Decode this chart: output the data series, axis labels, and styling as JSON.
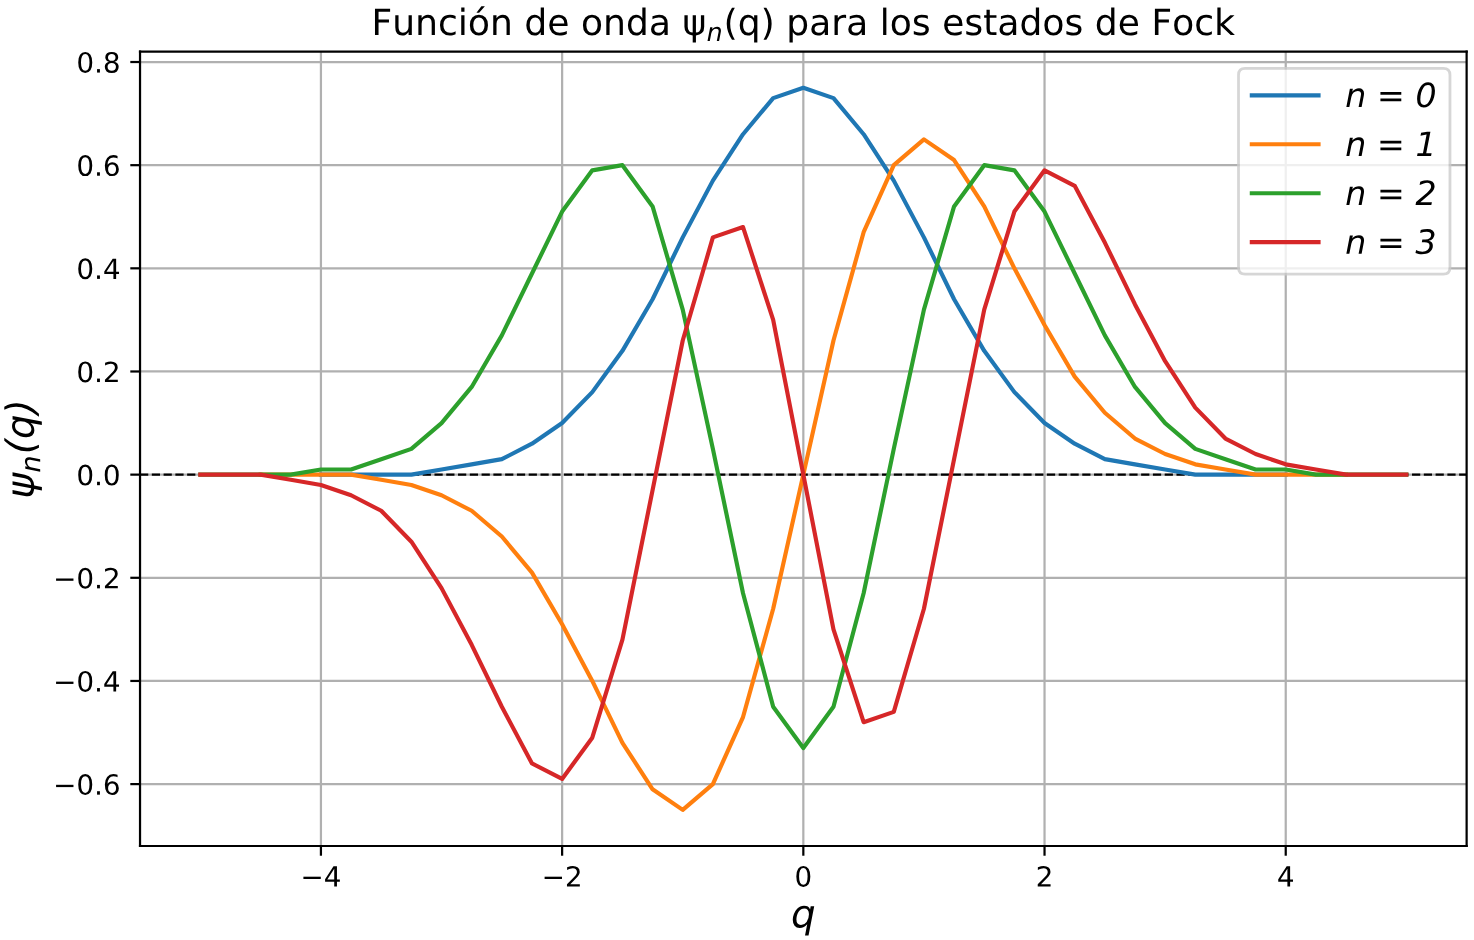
{
  "chart_data": {
    "type": "line",
    "title": "Función de onda ψ$_{n}$(q) para los estados de Fock",
    "xlabel": "q",
    "ylabel": "ψ$_{n}$(q)",
    "x": [
      -5,
      -4.75,
      -4.5,
      -4.25,
      -4,
      -3.75,
      -3.5,
      -3.25,
      -3,
      -2.75,
      -2.5,
      -2.25,
      -2,
      -1.75,
      -1.5,
      -1.25,
      -1,
      -0.75,
      -0.5,
      -0.25,
      0,
      0.25,
      0.5,
      0.75,
      1,
      1.25,
      1.5,
      1.75,
      2,
      2.25,
      2.5,
      2.75,
      3,
      3.25,
      3.5,
      3.75,
      4,
      4.25,
      4.5,
      4.75,
      5
    ],
    "series": [
      {
        "name": "n = 0",
        "color": "#1f77b4",
        "values": [
          null,
          null,
          null,
          null,
          0,
          0,
          0,
          0,
          0.01,
          0.02,
          0.03,
          0.06,
          0.1,
          0.16,
          0.24,
          0.34,
          0.46,
          0.57,
          0.66,
          0.73,
          0.75,
          0.73,
          0.66,
          0.57,
          0.46,
          0.34,
          0.24,
          0.16,
          0.1,
          0.06,
          0.03,
          0.02,
          0.01,
          0,
          0,
          0,
          0,
          null,
          null,
          null,
          null
        ]
      },
      {
        "name": "n = 1",
        "color": "#ff7f0e",
        "values": [
          null,
          null,
          0,
          0,
          0,
          0,
          -0.01,
          -0.02,
          -0.04,
          -0.07,
          -0.12,
          -0.19,
          -0.29,
          -0.4,
          -0.52,
          -0.61,
          -0.65,
          -0.6,
          -0.47,
          -0.26,
          0,
          0.26,
          0.47,
          0.6,
          0.65,
          0.61,
          0.52,
          0.4,
          0.29,
          0.19,
          0.12,
          0.07,
          0.04,
          0.02,
          0.01,
          0,
          0,
          0,
          0,
          null,
          null
        ]
      },
      {
        "name": "n = 2",
        "color": "#2ca02c",
        "values": [
          0,
          0,
          0,
          0,
          0.01,
          0.01,
          0.03,
          0.05,
          0.1,
          0.17,
          0.27,
          0.39,
          0.51,
          0.59,
          0.6,
          0.52,
          0.32,
          0.05,
          -0.23,
          -0.45,
          -0.53,
          -0.45,
          -0.23,
          0.05,
          0.32,
          0.52,
          0.6,
          0.59,
          0.51,
          0.39,
          0.27,
          0.17,
          0.1,
          0.05,
          0.03,
          0.01,
          0.01,
          0,
          0,
          0,
          0
        ]
      },
      {
        "name": "n = 3",
        "color": "#d62728",
        "values": [
          0,
          0,
          0,
          -0.01,
          -0.02,
          -0.04,
          -0.07,
          -0.13,
          -0.22,
          -0.33,
          -0.45,
          -0.56,
          -0.59,
          -0.51,
          -0.32,
          -0.03,
          0.26,
          0.46,
          0.48,
          0.3,
          0,
          -0.3,
          -0.48,
          -0.46,
          -0.26,
          0.03,
          0.32,
          0.51,
          0.59,
          0.56,
          0.45,
          0.33,
          0.22,
          0.13,
          0.07,
          0.04,
          0.02,
          0.01,
          0,
          0,
          0
        ]
      }
    ],
    "xlim": [
      -5.5,
      5.5
    ],
    "ylim": [
      -0.72,
      0.82
    ],
    "xticks": [
      {
        "value": -4,
        "label": "−4"
      },
      {
        "value": -2,
        "label": "−2"
      },
      0,
      2,
      4
    ],
    "yticks": [
      {
        "value": -0.6,
        "label": "−0.6"
      },
      {
        "value": -0.4,
        "label": "−0.4"
      },
      {
        "value": -0.2,
        "label": "−0.2"
      },
      {
        "value": 0,
        "label": "0.0"
      },
      0.2,
      0.4,
      0.6,
      0.8
    ],
    "ref_lines": [
      {
        "axis": "y",
        "value": 0,
        "color": "#000000",
        "line_style": "dashed"
      }
    ],
    "grid": true,
    "legend": "top right",
    "marker": "none",
    "line_style": "solid"
  }
}
